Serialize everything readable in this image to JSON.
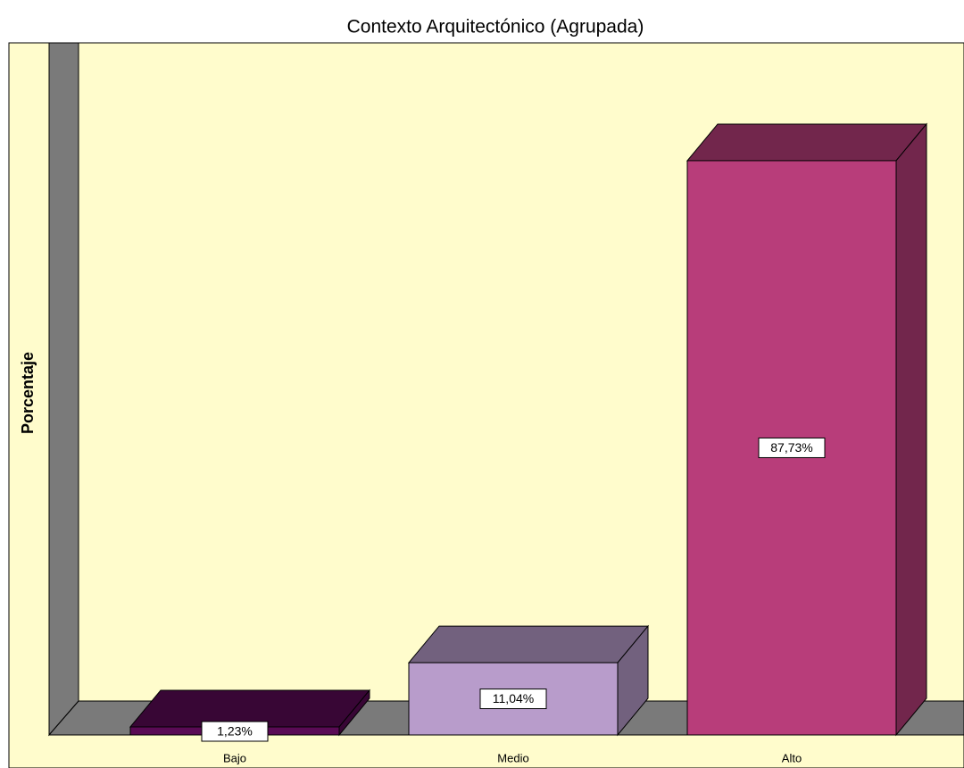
{
  "chart_data": {
    "type": "bar",
    "title": "Contexto Arquitectónico (Agrupada)",
    "y_label": "Porcentaje",
    "categories": [
      "Bajo",
      "Medio",
      "Alto"
    ],
    "values": [
      1.23,
      11.04,
      87.73
    ],
    "value_labels": [
      "1,23%",
      "11,04%",
      "87,73%"
    ],
    "colors": [
      "#5a0a55",
      "#b89ccb",
      "#b83d7a"
    ],
    "ylim": [
      0,
      100
    ]
  }
}
